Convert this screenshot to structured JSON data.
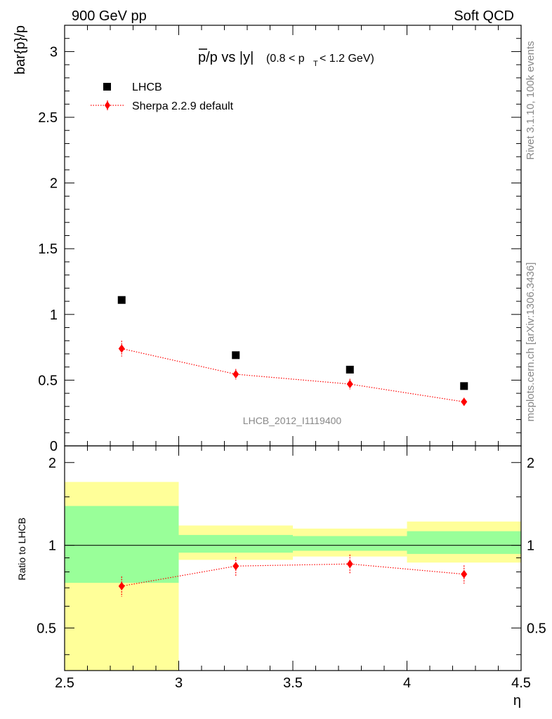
{
  "header": {
    "left": "900 GeV pp",
    "right": "Soft QCD"
  },
  "side_text": {
    "top": "Rivet 3.1.10,  100k events",
    "bottom": "mcplots.cern.ch [arXiv:1306.3436]"
  },
  "watermark": "LHCB_2012_I1119400",
  "chart_data": [
    {
      "type": "scatter",
      "title": "p̄/p vs |y|",
      "title_main": "p/p vs |y|",
      "title_sub_pre": "(0.8 < p",
      "title_sub_index": "T",
      "title_sub_post": " < 1.2 GeV)",
      "ylabel": "bar{p}/p",
      "xlim": [
        2.5,
        4.5
      ],
      "ylim": [
        0,
        3.2
      ],
      "yticks": [
        0,
        0.5,
        1,
        1.5,
        2,
        2.5,
        3
      ],
      "ytick_labels": [
        "0",
        "0.5",
        "1",
        "1.5",
        "2",
        "2.5",
        "3"
      ],
      "legend_position": "top-left",
      "series": [
        {
          "name": "LHCB",
          "marker": "square",
          "color": "#000000",
          "x": [
            2.75,
            3.25,
            3.75,
            4.25
          ],
          "y": [
            1.11,
            0.69,
            0.58,
            0.455
          ]
        },
        {
          "name": "Sherpa 2.2.9 default",
          "marker": "diamond",
          "color": "#ff0000",
          "line": "dotted",
          "x": [
            2.75,
            3.25,
            3.75,
            4.25
          ],
          "y": [
            0.74,
            0.545,
            0.47,
            0.335
          ],
          "yerr": [
            0.06,
            0.04,
            0.04,
            0.03
          ]
        }
      ]
    },
    {
      "type": "scatter",
      "ylabel": "Ratio to LHCB",
      "xlabel": "η",
      "xlim": [
        2.5,
        4.5
      ],
      "ylim": [
        0.35,
        2.3
      ],
      "log_y": true,
      "xticks": [
        2.5,
        3,
        3.5,
        4,
        4.5
      ],
      "xtick_labels": [
        "2.5",
        "3",
        "3.5",
        "4",
        "4.5"
      ],
      "yticks": [
        0.5,
        1,
        2
      ],
      "ytick_labels": [
        "0.5",
        "1",
        "2"
      ],
      "bands": [
        {
          "x0": 2.5,
          "x1": 3.0,
          "yellow": [
            0.35,
            1.7
          ],
          "green": [
            0.73,
            1.39
          ]
        },
        {
          "x0": 3.0,
          "x1": 3.5,
          "yellow": [
            0.885,
            1.18
          ],
          "green": [
            0.94,
            1.09
          ]
        },
        {
          "x0": 3.5,
          "x1": 4.0,
          "yellow": [
            0.91,
            1.15
          ],
          "green": [
            0.955,
            1.08
          ]
        },
        {
          "x0": 4.0,
          "x1": 4.5,
          "yellow": [
            0.865,
            1.22
          ],
          "green": [
            0.93,
            1.125
          ]
        }
      ],
      "series": [
        {
          "name": "Sherpa 2.2.9 default",
          "marker": "diamond",
          "color": "#ff0000",
          "line": "dotted",
          "x": [
            2.75,
            3.25,
            3.75,
            4.25
          ],
          "y": [
            0.71,
            0.84,
            0.855,
            0.785
          ],
          "yerr": [
            0.06,
            0.065,
            0.07,
            0.06
          ]
        }
      ]
    }
  ],
  "colors": {
    "band_yellow": "#ffff99",
    "band_green": "#99ff99",
    "model": "#ff0000",
    "data": "#000000"
  }
}
